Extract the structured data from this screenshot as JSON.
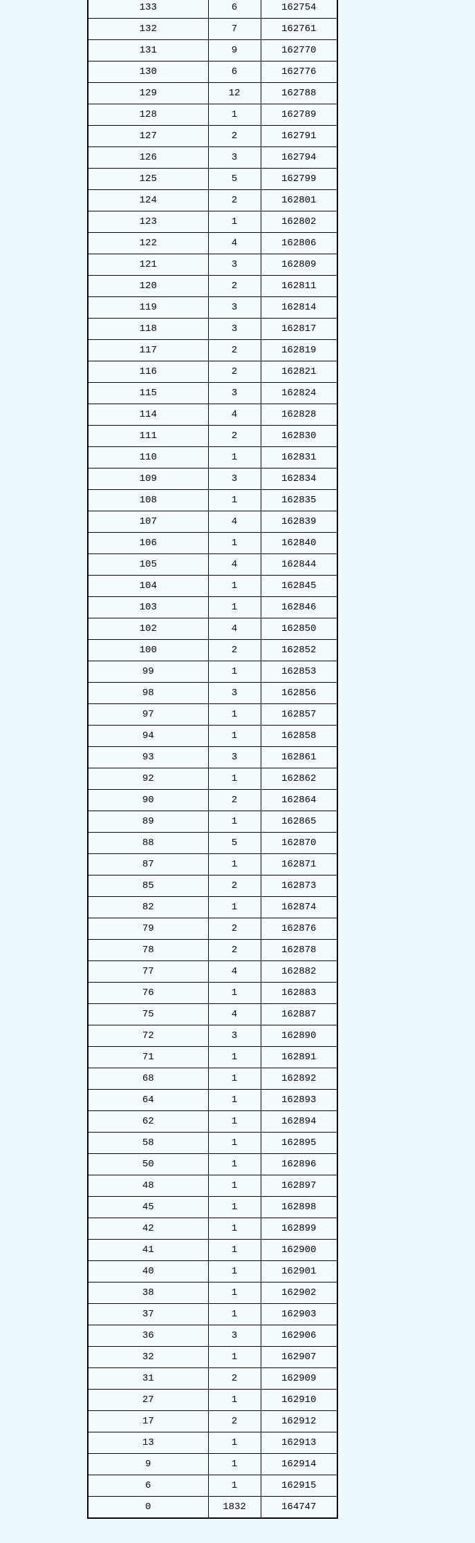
{
  "colors": {
    "page_background": "#ECF7FB",
    "cell_background": "#F4FBFE",
    "border": "#000000",
    "text": "#000000"
  },
  "table": {
    "rows": [
      [
        "133",
        "6",
        "162754"
      ],
      [
        "132",
        "7",
        "162761"
      ],
      [
        "131",
        "9",
        "162770"
      ],
      [
        "130",
        "6",
        "162776"
      ],
      [
        "129",
        "12",
        "162788"
      ],
      [
        "128",
        "1",
        "162789"
      ],
      [
        "127",
        "2",
        "162791"
      ],
      [
        "126",
        "3",
        "162794"
      ],
      [
        "125",
        "5",
        "162799"
      ],
      [
        "124",
        "2",
        "162801"
      ],
      [
        "123",
        "1",
        "162802"
      ],
      [
        "122",
        "4",
        "162806"
      ],
      [
        "121",
        "3",
        "162809"
      ],
      [
        "120",
        "2",
        "162811"
      ],
      [
        "119",
        "3",
        "162814"
      ],
      [
        "118",
        "3",
        "162817"
      ],
      [
        "117",
        "2",
        "162819"
      ],
      [
        "116",
        "2",
        "162821"
      ],
      [
        "115",
        "3",
        "162824"
      ],
      [
        "114",
        "4",
        "162828"
      ],
      [
        "111",
        "2",
        "162830"
      ],
      [
        "110",
        "1",
        "162831"
      ],
      [
        "109",
        "3",
        "162834"
      ],
      [
        "108",
        "1",
        "162835"
      ],
      [
        "107",
        "4",
        "162839"
      ],
      [
        "106",
        "1",
        "162840"
      ],
      [
        "105",
        "4",
        "162844"
      ],
      [
        "104",
        "1",
        "162845"
      ],
      [
        "103",
        "1",
        "162846"
      ],
      [
        "102",
        "4",
        "162850"
      ],
      [
        "100",
        "2",
        "162852"
      ],
      [
        "99",
        "1",
        "162853"
      ],
      [
        "98",
        "3",
        "162856"
      ],
      [
        "97",
        "1",
        "162857"
      ],
      [
        "94",
        "1",
        "162858"
      ],
      [
        "93",
        "3",
        "162861"
      ],
      [
        "92",
        "1",
        "162862"
      ],
      [
        "90",
        "2",
        "162864"
      ],
      [
        "89",
        "1",
        "162865"
      ],
      [
        "88",
        "5",
        "162870"
      ],
      [
        "87",
        "1",
        "162871"
      ],
      [
        "85",
        "2",
        "162873"
      ],
      [
        "82",
        "1",
        "162874"
      ],
      [
        "79",
        "2",
        "162876"
      ],
      [
        "78",
        "2",
        "162878"
      ],
      [
        "77",
        "4",
        "162882"
      ],
      [
        "76",
        "1",
        "162883"
      ],
      [
        "75",
        "4",
        "162887"
      ],
      [
        "72",
        "3",
        "162890"
      ],
      [
        "71",
        "1",
        "162891"
      ],
      [
        "68",
        "1",
        "162892"
      ],
      [
        "64",
        "1",
        "162893"
      ],
      [
        "62",
        "1",
        "162894"
      ],
      [
        "58",
        "1",
        "162895"
      ],
      [
        "50",
        "1",
        "162896"
      ],
      [
        "48",
        "1",
        "162897"
      ],
      [
        "45",
        "1",
        "162898"
      ],
      [
        "42",
        "1",
        "162899"
      ],
      [
        "41",
        "1",
        "162900"
      ],
      [
        "40",
        "1",
        "162901"
      ],
      [
        "38",
        "1",
        "162902"
      ],
      [
        "37",
        "1",
        "162903"
      ],
      [
        "36",
        "3",
        "162906"
      ],
      [
        "32",
        "1",
        "162907"
      ],
      [
        "31",
        "2",
        "162909"
      ],
      [
        "27",
        "1",
        "162910"
      ],
      [
        "17",
        "2",
        "162912"
      ],
      [
        "13",
        "1",
        "162913"
      ],
      [
        "9",
        "1",
        "162914"
      ],
      [
        "6",
        "1",
        "162915"
      ],
      [
        "0",
        "1832",
        "164747"
      ]
    ]
  }
}
